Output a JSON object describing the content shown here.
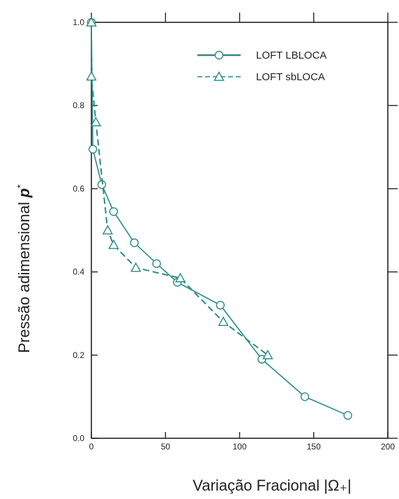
{
  "chart_data": {
    "type": "line",
    "xlabel": "Variação Fracional |Ω₊|",
    "ylabel_main": "Pressão adimensional ",
    "ylabel_symbol": "p",
    "ylabel_sup": "*",
    "xlim": [
      0,
      200
    ],
    "ylim": [
      0,
      1.0
    ],
    "xticks": [
      0,
      50,
      100,
      150,
      200
    ],
    "yticks": [
      0.0,
      0.2,
      0.4,
      0.6,
      0.8,
      1.0
    ],
    "xtick_labels": [
      "0",
      "50",
      "100",
      "150",
      "200"
    ],
    "ytick_labels": [
      "0.0",
      "0.2",
      "0.4",
      "0.6",
      "0.8",
      "1.0"
    ],
    "legend_position": "top-right",
    "grid": false,
    "colors": {
      "series": "#2a8a86",
      "axis": "#222222"
    },
    "series": [
      {
        "name": "LOFT LBLOCA",
        "style": "solid",
        "marker": "circle",
        "x": [
          0,
          1,
          7,
          15,
          29,
          44,
          58,
          87,
          115,
          144,
          173
        ],
        "y": [
          1.0,
          0.695,
          0.61,
          0.545,
          0.47,
          0.42,
          0.375,
          0.32,
          0.19,
          0.1,
          0.055
        ]
      },
      {
        "name": "LOFT sbLOCA",
        "style": "dashed",
        "marker": "triangle",
        "x": [
          0,
          0,
          3,
          11,
          15,
          30,
          60,
          89,
          119
        ],
        "y": [
          1.0,
          0.87,
          0.76,
          0.5,
          0.465,
          0.41,
          0.385,
          0.28,
          0.2
        ]
      }
    ]
  }
}
